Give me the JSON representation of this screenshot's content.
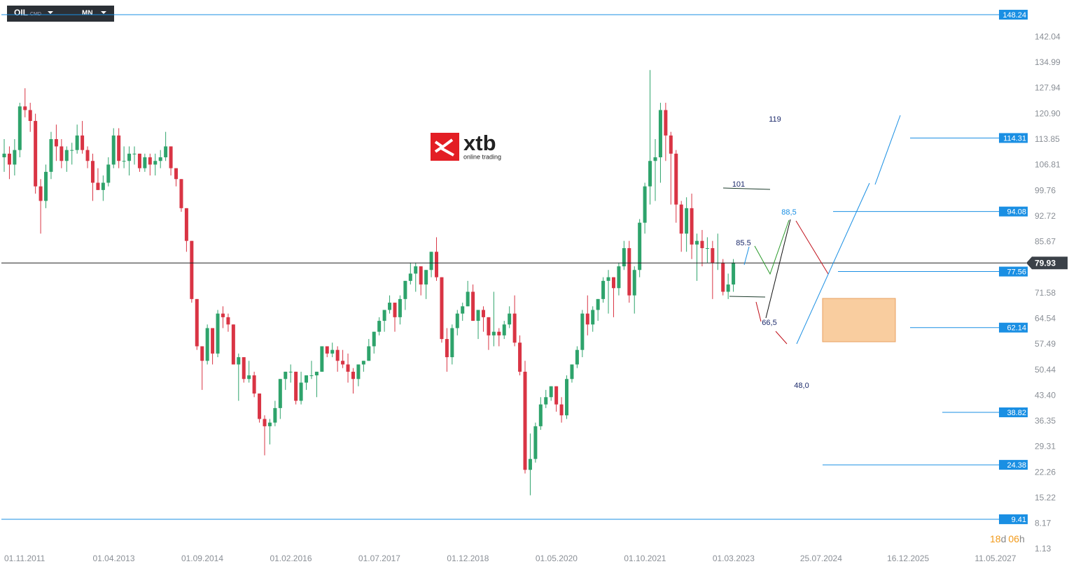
{
  "header": {
    "symbol": "OIL",
    "market": "CMD",
    "interval": "MN"
  },
  "logo": {
    "brand": "xtb",
    "tagline": "online trading"
  },
  "countdown": {
    "days": "18",
    "d": "d",
    "hours": "06",
    "h": "h"
  },
  "chart_data": {
    "type": "candlestick",
    "ylim": [
      0.36,
      152.28
    ],
    "yticks": [
      142.04,
      134.99,
      127.94,
      {
        "value": 120.9,
        "label": "120.90"
      },
      113.85,
      106.81,
      99.76,
      92.72,
      85.67,
      71.58,
      64.54,
      57.49,
      50.44,
      {
        "value": 43.4,
        "label": "43.40"
      },
      36.35,
      29.31,
      22.26,
      15.22,
      8.17,
      1.13
    ],
    "xticks": [
      "01.11.2011",
      "01.04.2013",
      "01.09.2014",
      "01.02.2016",
      "01.07.2017",
      "01.12.2018",
      "01.05.2020",
      "01.10.2021",
      "01.03.2023",
      "25.07.2024",
      "16.12.2025",
      "11.05.2027"
    ],
    "up_color": "#2ea36b",
    "down_color": "#d93444",
    "level_color": "#1a8fe3",
    "levels": [
      148.24,
      114.31,
      94.08,
      77.56,
      62.14,
      38.82,
      24.38,
      9.41
    ],
    "last_price": 79.93,
    "annotations": [
      {
        "text": "119",
        "color": "#1c2a6b"
      },
      {
        "text": "101",
        "color": "#1c2a6b"
      },
      {
        "text": "88,5",
        "color": "#1a8fe3"
      },
      {
        "text": "85.5",
        "color": "#1c2a6b"
      },
      {
        "text": "66,5",
        "color": "#1c2a6b"
      },
      {
        "text": "48,0",
        "color": "#1c2a6b"
      }
    ],
    "x": [
      "01.11.2011",
      "01.12.2011",
      "01.01.2012",
      "01.02.2012",
      "01.03.2012",
      "01.04.2012",
      "01.05.2012",
      "01.06.2012",
      "01.07.2012",
      "01.08.2012",
      "01.09.2012",
      "01.10.2012",
      "01.11.2012",
      "01.12.2012",
      "01.01.2013",
      "01.02.2013",
      "01.03.2013",
      "01.04.2013",
      "01.05.2013",
      "01.06.2013",
      "01.07.2013",
      "01.08.2013",
      "01.09.2013",
      "01.10.2013",
      "01.11.2013",
      "01.12.2013",
      "01.01.2014",
      "01.02.2014",
      "01.03.2014",
      "01.04.2014",
      "01.05.2014",
      "01.06.2014",
      "01.07.2014",
      "01.08.2014",
      "01.09.2014",
      "01.10.2014",
      "01.11.2014",
      "01.12.2014",
      "01.01.2015",
      "01.02.2015",
      "01.03.2015",
      "01.04.2015",
      "01.05.2015",
      "01.06.2015",
      "01.07.2015",
      "01.08.2015",
      "01.09.2015",
      "01.10.2015",
      "01.11.2015",
      "01.12.2015",
      "01.01.2016",
      "01.02.2016",
      "01.03.2016",
      "01.04.2016",
      "01.05.2016",
      "01.06.2016",
      "01.07.2016",
      "01.08.2016",
      "01.09.2016",
      "01.10.2016",
      "01.11.2016",
      "01.12.2016",
      "01.01.2017",
      "01.02.2017",
      "01.03.2017",
      "01.04.2017",
      "01.05.2017",
      "01.06.2017",
      "01.07.2017",
      "01.08.2017",
      "01.09.2017",
      "01.10.2017",
      "01.11.2017",
      "01.12.2017",
      "01.01.2018",
      "01.02.2018",
      "01.03.2018",
      "01.04.2018",
      "01.05.2018",
      "01.06.2018",
      "01.07.2018",
      "01.08.2018",
      "01.09.2018",
      "01.10.2018",
      "01.11.2018",
      "01.12.2018",
      "01.01.2019",
      "01.02.2019",
      "01.03.2019",
      "01.04.2019",
      "01.05.2019",
      "01.06.2019",
      "01.07.2019",
      "01.08.2019",
      "01.09.2019",
      "01.10.2019",
      "01.11.2019",
      "01.12.2019",
      "01.01.2020",
      "01.02.2020",
      "01.03.2020",
      "01.04.2020",
      "01.05.2020",
      "01.06.2020",
      "01.07.2020",
      "01.08.2020",
      "01.09.2020",
      "01.10.2020",
      "01.11.2020",
      "01.12.2020",
      "01.01.2021",
      "01.02.2021",
      "01.03.2021",
      "01.04.2021",
      "01.05.2021",
      "01.06.2021",
      "01.07.2021",
      "01.08.2021",
      "01.09.2021",
      "01.10.2021",
      "01.11.2021",
      "01.12.2021",
      "01.01.2022",
      "01.02.2022",
      "01.03.2022",
      "01.04.2022",
      "01.05.2022",
      "01.06.2022",
      "01.07.2022",
      "01.08.2022",
      "01.09.2022",
      "01.10.2022",
      "01.11.2022",
      "01.12.2022",
      "01.01.2023",
      "01.02.2023",
      "01.03.2023",
      "01.04.2023",
      "01.05.2023",
      "01.06.2023",
      "01.07.2023"
    ],
    "ohlc": [
      [
        109,
        114,
        105,
        110
      ],
      [
        110,
        112,
        103,
        107
      ],
      [
        107,
        114,
        104,
        111
      ],
      [
        111,
        124,
        109,
        123
      ],
      [
        123,
        128,
        120,
        122
      ],
      [
        122,
        124,
        116,
        119
      ],
      [
        119,
        121,
        99,
        101
      ],
      [
        101,
        103,
        88,
        97
      ],
      [
        97,
        107,
        95,
        105
      ],
      [
        105,
        116,
        103,
        114
      ],
      [
        114,
        118,
        108,
        112
      ],
      [
        112,
        114,
        106,
        108
      ],
      [
        108,
        112,
        105,
        111
      ],
      [
        111,
        113,
        107,
        111
      ],
      [
        111,
        118,
        110,
        115
      ],
      [
        115,
        119,
        110,
        111
      ],
      [
        111,
        112,
        106,
        108
      ],
      [
        108,
        110,
        97,
        102
      ],
      [
        102,
        106,
        100,
        100
      ],
      [
        100,
        104,
        97,
        102
      ],
      [
        102,
        109,
        101,
        107
      ],
      [
        107,
        117,
        106,
        115
      ],
      [
        115,
        117,
        106,
        108
      ],
      [
        108,
        112,
        106,
        108
      ],
      [
        108,
        112,
        104,
        110
      ],
      [
        110,
        112,
        107,
        110
      ],
      [
        110,
        110,
        105,
        106
      ],
      [
        106,
        110,
        105,
        109
      ],
      [
        109,
        110,
        104,
        107
      ],
      [
        107,
        110,
        104,
        108
      ],
      [
        108,
        111,
        106,
        109
      ],
      [
        109,
        116,
        108,
        112
      ],
      [
        112,
        112,
        104,
        106
      ],
      [
        106,
        106,
        101,
        103
      ],
      [
        103,
        103,
        94,
        95
      ],
      [
        95,
        95,
        83,
        86
      ],
      [
        86,
        86,
        69,
        70
      ],
      [
        70,
        70,
        56,
        57
      ],
      [
        57,
        57,
        45,
        53
      ],
      [
        53,
        63,
        52,
        62
      ],
      [
        62,
        62,
        52,
        55
      ],
      [
        55,
        67,
        54,
        66
      ],
      [
        66,
        68,
        62,
        65
      ],
      [
        65,
        66,
        61,
        63
      ],
      [
        63,
        63,
        52,
        52
      ],
      [
        52,
        55,
        42,
        54
      ],
      [
        54,
        54,
        47,
        48
      ],
      [
        48,
        53,
        47,
        49
      ],
      [
        49,
        50,
        43,
        44
      ],
      [
        44,
        44,
        36,
        37
      ],
      [
        37,
        38,
        27,
        35
      ],
      [
        35,
        37,
        30,
        36
      ],
      [
        36,
        42,
        35,
        40
      ],
      [
        40,
        48,
        37,
        48
      ],
      [
        48,
        50,
        45,
        50
      ],
      [
        50,
        52,
        47,
        50
      ],
      [
        50,
        50,
        41,
        42
      ],
      [
        42,
        50,
        41,
        47
      ],
      [
        47,
        49,
        45,
        49
      ],
      [
        49,
        53,
        48,
        49
      ],
      [
        49,
        50,
        43,
        50
      ],
      [
        50,
        57,
        50,
        57
      ],
      [
        57,
        57,
        54,
        55
      ],
      [
        55,
        58,
        54,
        56
      ],
      [
        56,
        57,
        50,
        53
      ],
      [
        53,
        56,
        51,
        52
      ],
      [
        52,
        55,
        47,
        50
      ],
      [
        50,
        51,
        44,
        48
      ],
      [
        48,
        52,
        46,
        52
      ],
      [
        52,
        53,
        50,
        53
      ],
      [
        53,
        59,
        53,
        57
      ],
      [
        57,
        61,
        55,
        61
      ],
      [
        61,
        65,
        60,
        64
      ],
      [
        64,
        67,
        61,
        67
      ],
      [
        67,
        71,
        66,
        69
      ],
      [
        69,
        69,
        61,
        65
      ],
      [
        65,
        71,
        63,
        70
      ],
      [
        70,
        75,
        67,
        75
      ],
      [
        75,
        80,
        74,
        77
      ],
      [
        77,
        80,
        72,
        79
      ],
      [
        79,
        79,
        71,
        74
      ],
      [
        74,
        78,
        70,
        78
      ],
      [
        78,
        83,
        76,
        83
      ],
      [
        83,
        87,
        75,
        76
      ],
      [
        76,
        76,
        58,
        59
      ],
      [
        59,
        62,
        50,
        54
      ],
      [
        54,
        63,
        52,
        62
      ],
      [
        62,
        67,
        60,
        66
      ],
      [
        66,
        69,
        64,
        68
      ],
      [
        68,
        75,
        68,
        72
      ],
      [
        72,
        74,
        64,
        64
      ],
      [
        64,
        67,
        59,
        67
      ],
      [
        67,
        68,
        61,
        65
      ],
      [
        65,
        65,
        56,
        60
      ],
      [
        60,
        72,
        57,
        61
      ],
      [
        61,
        62,
        57,
        60
      ],
      [
        60,
        64,
        59,
        63
      ],
      [
        63,
        68,
        62,
        66
      ],
      [
        66,
        71,
        57,
        58
      ],
      [
        58,
        60,
        49,
        50
      ],
      [
        50,
        53,
        22,
        23
      ],
      [
        23,
        33,
        16,
        26
      ],
      [
        26,
        36,
        25,
        35
      ],
      [
        35,
        43,
        34,
        41
      ],
      [
        41,
        45,
        40,
        43
      ],
      [
        43,
        46,
        42,
        46
      ],
      [
        46,
        46,
        39,
        41
      ],
      [
        41,
        43,
        36,
        38
      ],
      [
        38,
        49,
        37,
        48
      ],
      [
        48,
        52,
        47,
        52
      ],
      [
        52,
        57,
        51,
        56
      ],
      [
        56,
        67,
        54,
        66
      ],
      [
        66,
        71,
        60,
        63
      ],
      [
        63,
        68,
        61,
        67
      ],
      [
        67,
        70,
        64,
        70
      ],
      [
        70,
        76,
        69,
        75
      ],
      [
        75,
        78,
        66,
        76
      ],
      [
        76,
        76,
        65,
        73
      ],
      [
        73,
        80,
        71,
        79
      ],
      [
        79,
        86,
        78,
        84
      ],
      [
        84,
        86,
        69,
        71
      ],
      [
        71,
        79,
        66,
        78
      ],
      [
        78,
        92,
        76,
        91
      ],
      [
        91,
        102,
        88,
        101
      ],
      [
        101,
        133,
        96,
        108
      ],
      [
        108,
        114,
        97,
        109
      ],
      [
        109,
        124,
        102,
        122
      ],
      [
        122,
        124,
        108,
        115
      ],
      [
        115,
        116,
        96,
        110
      ],
      [
        110,
        111,
        91,
        96
      ],
      [
        96,
        97,
        83,
        88
      ],
      [
        88,
        98,
        83,
        95
      ],
      [
        95,
        99,
        81,
        85
      ],
      [
        85,
        88,
        75,
        86
      ],
      [
        86,
        89,
        79,
        84
      ],
      [
        84,
        87,
        80,
        84
      ],
      [
        84,
        86,
        70,
        80
      ],
      [
        80,
        88,
        78,
        80
      ],
      [
        80,
        81,
        71,
        72
      ],
      [
        72,
        77,
        70,
        74
      ],
      [
        74,
        81,
        72,
        80
      ]
    ]
  }
}
